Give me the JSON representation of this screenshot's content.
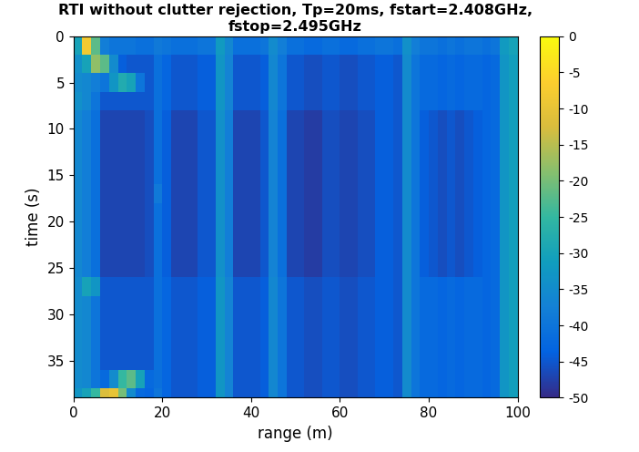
{
  "chart_data": {
    "type": "heatmap",
    "title": "RTI without clutter rejection, Tp=20ms, fstart=2.408GHz, fstop=2.495GHz",
    "x_label": "range (m)",
    "y_label": "time (s)",
    "xlim": [
      0,
      100
    ],
    "xticks": [
      0,
      20,
      40,
      60,
      80,
      100
    ],
    "ylim": [
      39,
      0
    ],
    "yticks": [
      0,
      5,
      10,
      15,
      20,
      25,
      30,
      35
    ],
    "range_edges": [
      0,
      2,
      4,
      6,
      8,
      10,
      12,
      14,
      16,
      18,
      20,
      22,
      24,
      26,
      28,
      30,
      32,
      34,
      36,
      38,
      40,
      42,
      44,
      46,
      48,
      50,
      52,
      54,
      56,
      58,
      60,
      62,
      64,
      66,
      68,
      70,
      72,
      74,
      76,
      78,
      80,
      82,
      84,
      86,
      88,
      90,
      92,
      94,
      96,
      98,
      100
    ],
    "time_edges": [
      0,
      2,
      4,
      6,
      8,
      10,
      12,
      14,
      16,
      18,
      20,
      22,
      24,
      26,
      28,
      30,
      32,
      34,
      36,
      38,
      40
    ],
    "cells": [
      [
        -30,
        -8,
        -22,
        -38,
        -40,
        -40,
        -40,
        -41,
        -41,
        -39,
        -40,
        -41,
        -41,
        -41,
        -40,
        -40,
        -32,
        -36,
        -41,
        -41,
        -41,
        -40,
        -35,
        -38,
        -41,
        -41,
        -42,
        -42,
        -41,
        -41,
        -42,
        -42,
        -41,
        -41,
        -40,
        -40,
        -41,
        -34,
        -38,
        -40,
        -40,
        -41,
        -40,
        -41,
        -40,
        -40,
        -41,
        -40,
        -32,
        -30
      ],
      [
        -34,
        -30,
        -18,
        -22,
        -35,
        -44,
        -45,
        -45,
        -45,
        -41,
        -43,
        -45,
        -45,
        -45,
        -44,
        -44,
        -33,
        -37,
        -45,
        -45,
        -45,
        -44,
        -36,
        -40,
        -45,
        -45,
        -46,
        -46,
        -45,
        -45,
        -46,
        -46,
        -45,
        -45,
        -44,
        -44,
        -45,
        -35,
        -40,
        -42,
        -42,
        -43,
        -42,
        -43,
        -42,
        -42,
        -43,
        -42,
        -33,
        -31
      ],
      [
        -35,
        -36,
        -38,
        -40,
        -33,
        -28,
        -30,
        -40,
        -45,
        -41,
        -43,
        -45,
        -45,
        -45,
        -44,
        -44,
        -33,
        -37,
        -45,
        -45,
        -45,
        -44,
        -36,
        -40,
        -45,
        -45,
        -46,
        -46,
        -45,
        -45,
        -46,
        -46,
        -45,
        -45,
        -44,
        -44,
        -45,
        -35,
        -40,
        -42,
        -42,
        -43,
        -42,
        -43,
        -42,
        -42,
        -43,
        -42,
        -33,
        -31
      ],
      [
        -34,
        -36,
        -40,
        -45,
        -45,
        -45,
        -45,
        -45,
        -45,
        -41,
        -43,
        -45,
        -45,
        -45,
        -44,
        -44,
        -33,
        -37,
        -45,
        -45,
        -45,
        -44,
        -36,
        -40,
        -45,
        -45,
        -46,
        -46,
        -45,
        -45,
        -46,
        -46,
        -45,
        -45,
        -44,
        -44,
        -45,
        -35,
        -40,
        -42,
        -42,
        -43,
        -42,
        -43,
        -42,
        -42,
        -43,
        -42,
        -33,
        -31
      ],
      [
        -36,
        -38,
        -41,
        -47,
        -47,
        -47,
        -47,
        -47,
        -46,
        -41,
        -44,
        -47,
        -47,
        -47,
        -45,
        -45,
        -34,
        -38,
        -47,
        -47,
        -47,
        -45,
        -37,
        -41,
        -47,
        -47,
        -48,
        -48,
        -46,
        -46,
        -47,
        -47,
        -46,
        -46,
        -44,
        -44,
        -45,
        -35,
        -40,
        -44,
        -45,
        -46,
        -45,
        -46,
        -45,
        -44,
        -43,
        -42,
        -33,
        -31
      ],
      [
        -36,
        -38,
        -41,
        -47,
        -47,
        -47,
        -47,
        -47,
        -46,
        -41,
        -44,
        -47,
        -47,
        -47,
        -45,
        -45,
        -34,
        -38,
        -47,
        -47,
        -47,
        -45,
        -37,
        -41,
        -47,
        -47,
        -48,
        -48,
        -46,
        -46,
        -47,
        -47,
        -46,
        -46,
        -44,
        -44,
        -45,
        -35,
        -40,
        -44,
        -45,
        -46,
        -45,
        -46,
        -45,
        -44,
        -43,
        -42,
        -33,
        -31
      ],
      [
        -36,
        -38,
        -41,
        -47,
        -47,
        -47,
        -47,
        -47,
        -46,
        -41,
        -44,
        -47,
        -47,
        -47,
        -45,
        -45,
        -34,
        -38,
        -47,
        -47,
        -47,
        -45,
        -37,
        -41,
        -47,
        -47,
        -48,
        -48,
        -46,
        -46,
        -47,
        -47,
        -46,
        -46,
        -44,
        -44,
        -45,
        -35,
        -40,
        -44,
        -45,
        -46,
        -45,
        -46,
        -45,
        -44,
        -43,
        -42,
        -33,
        -31
      ],
      [
        -36,
        -38,
        -41,
        -47,
        -47,
        -47,
        -47,
        -47,
        -46,
        -41,
        -44,
        -47,
        -47,
        -47,
        -45,
        -45,
        -34,
        -38,
        -47,
        -47,
        -47,
        -45,
        -37,
        -41,
        -47,
        -47,
        -48,
        -48,
        -46,
        -46,
        -47,
        -47,
        -46,
        -46,
        -44,
        -44,
        -45,
        -35,
        -40,
        -44,
        -45,
        -46,
        -45,
        -46,
        -45,
        -44,
        -43,
        -42,
        -33,
        -31
      ],
      [
        -36,
        -38,
        -41,
        -47,
        -47,
        -47,
        -47,
        -47,
        -46,
        -39,
        -44,
        -47,
        -47,
        -47,
        -45,
        -45,
        -34,
        -38,
        -47,
        -47,
        -47,
        -45,
        -37,
        -41,
        -47,
        -47,
        -48,
        -48,
        -46,
        -46,
        -47,
        -47,
        -46,
        -46,
        -44,
        -44,
        -45,
        -35,
        -40,
        -44,
        -45,
        -46,
        -45,
        -46,
        -45,
        -44,
        -43,
        -42,
        -33,
        -31
      ],
      [
        -36,
        -38,
        -41,
        -47,
        -47,
        -47,
        -47,
        -47,
        -46,
        -41,
        -44,
        -47,
        -47,
        -47,
        -45,
        -45,
        -34,
        -38,
        -47,
        -47,
        -47,
        -45,
        -37,
        -41,
        -47,
        -47,
        -48,
        -48,
        -46,
        -46,
        -47,
        -47,
        -46,
        -46,
        -44,
        -44,
        -45,
        -35,
        -40,
        -44,
        -45,
        -46,
        -45,
        -46,
        -45,
        -44,
        -43,
        -42,
        -33,
        -31
      ],
      [
        -36,
        -38,
        -41,
        -47,
        -47,
        -47,
        -47,
        -47,
        -46,
        -41,
        -44,
        -47,
        -47,
        -47,
        -45,
        -45,
        -34,
        -38,
        -47,
        -47,
        -47,
        -45,
        -37,
        -41,
        -47,
        -47,
        -48,
        -48,
        -46,
        -46,
        -47,
        -47,
        -46,
        -46,
        -44,
        -44,
        -45,
        -35,
        -40,
        -44,
        -45,
        -46,
        -45,
        -46,
        -45,
        -44,
        -43,
        -42,
        -33,
        -31
      ],
      [
        -36,
        -38,
        -41,
        -47,
        -47,
        -47,
        -47,
        -47,
        -46,
        -41,
        -44,
        -47,
        -47,
        -47,
        -45,
        -45,
        -34,
        -38,
        -47,
        -47,
        -47,
        -45,
        -37,
        -41,
        -47,
        -47,
        -48,
        -48,
        -46,
        -46,
        -47,
        -47,
        -46,
        -46,
        -44,
        -44,
        -45,
        -35,
        -40,
        -44,
        -45,
        -46,
        -45,
        -46,
        -45,
        -44,
        -43,
        -42,
        -33,
        -31
      ],
      [
        -36,
        -38,
        -41,
        -47,
        -47,
        -47,
        -47,
        -47,
        -46,
        -41,
        -44,
        -47,
        -47,
        -47,
        -45,
        -45,
        -34,
        -38,
        -47,
        -47,
        -47,
        -45,
        -37,
        -41,
        -47,
        -47,
        -48,
        -48,
        -46,
        -46,
        -47,
        -47,
        -46,
        -46,
        -44,
        -44,
        -45,
        -35,
        -40,
        -44,
        -45,
        -46,
        -45,
        -46,
        -45,
        -44,
        -43,
        -42,
        -33,
        -31
      ],
      [
        -35,
        -30,
        -33,
        -45,
        -45,
        -45,
        -45,
        -45,
        -45,
        -41,
        -43,
        -45,
        -45,
        -45,
        -44,
        -44,
        -33,
        -37,
        -45,
        -45,
        -45,
        -44,
        -36,
        -40,
        -45,
        -45,
        -46,
        -46,
        -45,
        -45,
        -46,
        -46,
        -45,
        -45,
        -44,
        -44,
        -45,
        -35,
        -40,
        -42,
        -42,
        -43,
        -42,
        -43,
        -42,
        -42,
        -43,
        -42,
        -33,
        -31
      ],
      [
        -35,
        -36,
        -40,
        -45,
        -45,
        -45,
        -45,
        -45,
        -45,
        -41,
        -43,
        -45,
        -45,
        -45,
        -44,
        -44,
        -33,
        -37,
        -45,
        -45,
        -45,
        -44,
        -36,
        -40,
        -45,
        -45,
        -46,
        -46,
        -45,
        -45,
        -46,
        -46,
        -45,
        -45,
        -44,
        -44,
        -45,
        -35,
        -40,
        -42,
        -42,
        -43,
        -42,
        -43,
        -42,
        -42,
        -43,
        -42,
        -33,
        -31
      ],
      [
        -35,
        -36,
        -40,
        -45,
        -45,
        -45,
        -45,
        -45,
        -45,
        -41,
        -43,
        -45,
        -45,
        -45,
        -44,
        -44,
        -33,
        -37,
        -45,
        -45,
        -45,
        -44,
        -36,
        -40,
        -45,
        -45,
        -46,
        -46,
        -45,
        -45,
        -46,
        -46,
        -45,
        -45,
        -44,
        -44,
        -45,
        -35,
        -40,
        -42,
        -42,
        -43,
        -42,
        -43,
        -42,
        -42,
        -43,
        -42,
        -33,
        -31
      ],
      [
        -35,
        -36,
        -40,
        -45,
        -45,
        -45,
        -45,
        -45,
        -45,
        -41,
        -43,
        -45,
        -45,
        -45,
        -44,
        -44,
        -33,
        -37,
        -45,
        -45,
        -45,
        -44,
        -36,
        -40,
        -45,
        -45,
        -46,
        -46,
        -45,
        -45,
        -46,
        -46,
        -45,
        -45,
        -44,
        -44,
        -45,
        -35,
        -40,
        -42,
        -42,
        -43,
        -42,
        -43,
        -42,
        -42,
        -43,
        -42,
        -33,
        -31
      ],
      [
        -35,
        -36,
        -40,
        -45,
        -45,
        -45,
        -45,
        -45,
        -45,
        -41,
        -43,
        -45,
        -45,
        -45,
        -44,
        -44,
        -33,
        -37,
        -45,
        -45,
        -45,
        -44,
        -36,
        -40,
        -45,
        -45,
        -46,
        -46,
        -45,
        -45,
        -46,
        -46,
        -45,
        -45,
        -44,
        -44,
        -45,
        -35,
        -40,
        -42,
        -42,
        -43,
        -42,
        -43,
        -42,
        -42,
        -43,
        -42,
        -33,
        -31
      ],
      [
        -35,
        -36,
        -40,
        -42,
        -35,
        -25,
        -22,
        -30,
        -42,
        -41,
        -43,
        -45,
        -45,
        -45,
        -44,
        -44,
        -33,
        -37,
        -45,
        -45,
        -45,
        -44,
        -36,
        -40,
        -45,
        -45,
        -46,
        -46,
        -45,
        -45,
        -46,
        -46,
        -45,
        -45,
        -44,
        -44,
        -45,
        -35,
        -40,
        -42,
        -42,
        -43,
        -42,
        -43,
        -42,
        -42,
        -43,
        -42,
        -33,
        -31
      ],
      [
        -33,
        -30,
        -25,
        -12,
        -10,
        -20,
        -35,
        -42,
        -43,
        -40,
        -43,
        -45,
        -45,
        -45,
        -44,
        -44,
        -33,
        -37,
        -45,
        -45,
        -45,
        -44,
        -36,
        -40,
        -45,
        -45,
        -46,
        -46,
        -45,
        -45,
        -46,
        -46,
        -45,
        -45,
        -44,
        -44,
        -45,
        -35,
        -40,
        -42,
        -42,
        -43,
        -42,
        -43,
        -42,
        -42,
        -43,
        -42,
        -33,
        -31
      ]
    ],
    "colorbar_lim": [
      -50,
      0
    ],
    "colorbar_ticks": [
      0,
      -5,
      -10,
      -15,
      -20,
      -25,
      -30,
      -35,
      -40,
      -45,
      -50
    ]
  }
}
